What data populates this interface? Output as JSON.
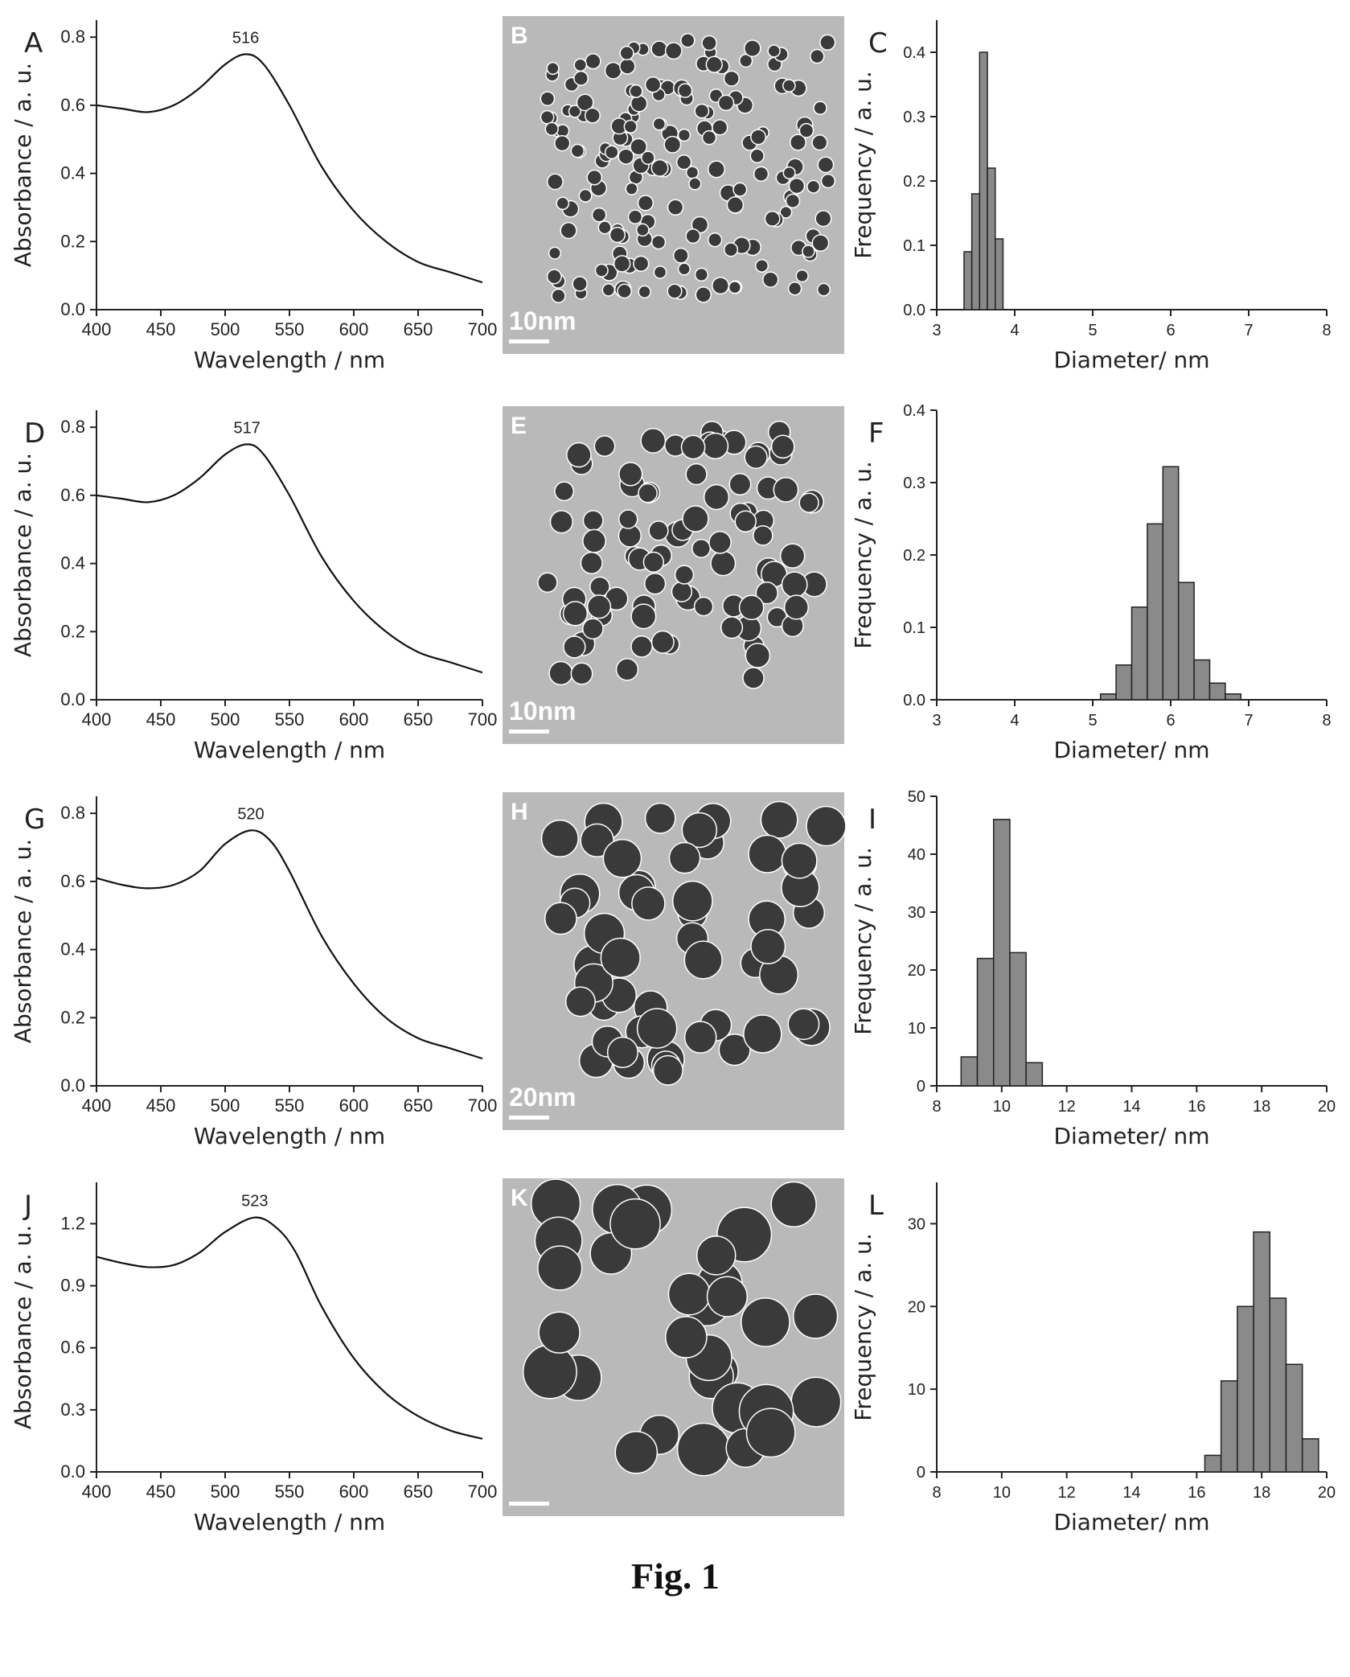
{
  "figure_caption": "Fig. 1",
  "spectra_panels": [
    {
      "letter": "A",
      "peak_label": "516",
      "tem_letter": "B",
      "tem_scale_label": "10nm"
    },
    {
      "letter": "D",
      "peak_label": "517",
      "tem_letter": "E",
      "tem_scale_label": "10nm"
    },
    {
      "letter": "G",
      "peak_label": "520",
      "tem_letter": "H",
      "tem_scale_label": "20nm"
    },
    {
      "letter": "J",
      "peak_label": "523",
      "tem_letter": "K",
      "tem_scale_label": ""
    }
  ],
  "histogram_panels": [
    {
      "letter": "C"
    },
    {
      "letter": "F"
    },
    {
      "letter": "I"
    },
    {
      "letter": "L"
    }
  ],
  "colors": {
    "bar_fill": "#8a8a8a",
    "line": "#111111",
    "tem_background": "#b9b9b9",
    "particle": "#3a3a3a"
  },
  "chart_data": [
    {
      "panel": "A",
      "type": "line",
      "xlabel": "Wavelength / nm",
      "ylabel": "Absorbance / a. u.",
      "xlim": [
        400,
        700
      ],
      "ylim": [
        0.0,
        0.85
      ],
      "xticks": [
        "400",
        "450",
        "500",
        "550",
        "600",
        "650",
        "700"
      ],
      "yticks": [
        "0.0",
        "0.2",
        "0.4",
        "0.6",
        "0.8"
      ],
      "annotation": "516",
      "x": [
        400,
        420,
        440,
        460,
        480,
        500,
        516,
        530,
        550,
        575,
        600,
        625,
        650,
        675,
        700
      ],
      "y": [
        0.6,
        0.59,
        0.58,
        0.6,
        0.65,
        0.72,
        0.75,
        0.72,
        0.6,
        0.42,
        0.29,
        0.2,
        0.14,
        0.11,
        0.08
      ]
    },
    {
      "panel": "C",
      "type": "bar",
      "xlabel": "Diameter/ nm",
      "ylabel": "Frequency / a. u.",
      "xlim": [
        3,
        8
      ],
      "ylim": [
        0.0,
        0.45
      ],
      "xticks": [
        "3",
        "4",
        "5",
        "6",
        "7",
        "8"
      ],
      "yticks": [
        "0.0",
        "0.1",
        "0.2",
        "0.3",
        "0.4"
      ],
      "bin_width": 0.1,
      "x": [
        3.4,
        3.5,
        3.6,
        3.7,
        3.8
      ],
      "values": [
        0.09,
        0.18,
        0.4,
        0.22,
        0.11
      ]
    },
    {
      "panel": "D",
      "type": "line",
      "xlabel": "Wavelength / nm",
      "ylabel": "Absorbance / a. u.",
      "xlim": [
        400,
        700
      ],
      "ylim": [
        0.0,
        0.85
      ],
      "xticks": [
        "400",
        "450",
        "500",
        "550",
        "600",
        "650",
        "700"
      ],
      "yticks": [
        "0.0",
        "0.2",
        "0.4",
        "0.6",
        "0.8"
      ],
      "annotation": "517",
      "x": [
        400,
        420,
        440,
        460,
        480,
        500,
        517,
        530,
        550,
        575,
        600,
        625,
        650,
        675,
        700
      ],
      "y": [
        0.6,
        0.59,
        0.58,
        0.6,
        0.65,
        0.72,
        0.75,
        0.72,
        0.6,
        0.42,
        0.29,
        0.2,
        0.14,
        0.11,
        0.08
      ]
    },
    {
      "panel": "F",
      "type": "bar",
      "xlabel": "Diameter/ nm",
      "ylabel": "Frequency / a. u.",
      "xlim": [
        3,
        8
      ],
      "ylim": [
        0.0,
        0.4
      ],
      "xticks": [
        "3",
        "4",
        "5",
        "6",
        "7",
        "8"
      ],
      "yticks": [
        "0.0",
        "0.1",
        "0.2",
        "0.3",
        "0.4"
      ],
      "bin_width": 0.2,
      "x": [
        5.2,
        5.4,
        5.6,
        5.8,
        6.0,
        6.2,
        6.4,
        6.6,
        6.8
      ],
      "values": [
        0.008,
        0.048,
        0.128,
        0.243,
        0.322,
        0.162,
        0.055,
        0.023,
        0.008
      ]
    },
    {
      "panel": "G",
      "type": "line",
      "xlabel": "Wavelength / nm",
      "ylabel": "Absorbance / a. u.",
      "xlim": [
        400,
        700
      ],
      "ylim": [
        0.0,
        0.85
      ],
      "xticks": [
        "400",
        "450",
        "500",
        "550",
        "600",
        "650",
        "700"
      ],
      "yticks": [
        "0.0",
        "0.2",
        "0.4",
        "0.6",
        "0.8"
      ],
      "annotation": "520",
      "x": [
        400,
        420,
        440,
        460,
        480,
        500,
        520,
        535,
        550,
        575,
        600,
        625,
        650,
        675,
        700
      ],
      "y": [
        0.61,
        0.59,
        0.58,
        0.59,
        0.63,
        0.71,
        0.75,
        0.72,
        0.63,
        0.44,
        0.3,
        0.2,
        0.14,
        0.11,
        0.08
      ]
    },
    {
      "panel": "I",
      "type": "bar",
      "xlabel": "Diameter/ nm",
      "ylabel": "Frequency / a. u.",
      "xlim": [
        8,
        20
      ],
      "ylim": [
        0,
        50
      ],
      "xticks": [
        "8",
        "10",
        "12",
        "14",
        "16",
        "18",
        "20"
      ],
      "yticks": [
        "0",
        "10",
        "20",
        "30",
        "40",
        "50"
      ],
      "bin_width": 0.5,
      "x": [
        9.0,
        9.5,
        10.0,
        10.5,
        11.0
      ],
      "values": [
        5,
        22,
        46,
        23,
        4
      ]
    },
    {
      "panel": "J",
      "type": "line",
      "xlabel": "Wavelength / nm",
      "ylabel": "Absorbance / a. u.",
      "xlim": [
        400,
        700
      ],
      "ylim": [
        0.0,
        1.4
      ],
      "xticks": [
        "400",
        "450",
        "500",
        "550",
        "600",
        "650",
        "700"
      ],
      "yticks": [
        "0.0",
        "0.3",
        "0.6",
        "0.9",
        "1.2"
      ],
      "annotation": "523",
      "x": [
        400,
        420,
        440,
        460,
        480,
        500,
        523,
        540,
        555,
        575,
        600,
        625,
        650,
        675,
        700
      ],
      "y": [
        1.04,
        1.01,
        0.99,
        1.0,
        1.06,
        1.16,
        1.23,
        1.18,
        1.06,
        0.8,
        0.55,
        0.38,
        0.27,
        0.2,
        0.16
      ]
    },
    {
      "panel": "L",
      "type": "bar",
      "xlabel": "Diameter/ nm",
      "ylabel": "Frequency / a. u.",
      "xlim": [
        8,
        20
      ],
      "ylim": [
        0,
        35
      ],
      "xticks": [
        "8",
        "10",
        "12",
        "14",
        "16",
        "18",
        "20"
      ],
      "yticks": [
        "0",
        "10",
        "20",
        "30"
      ],
      "bin_width": 0.5,
      "x": [
        16.5,
        17.0,
        17.5,
        18.0,
        18.5,
        19.0,
        19.5
      ],
      "values": [
        2,
        11,
        20,
        29,
        21,
        13,
        4
      ]
    }
  ]
}
